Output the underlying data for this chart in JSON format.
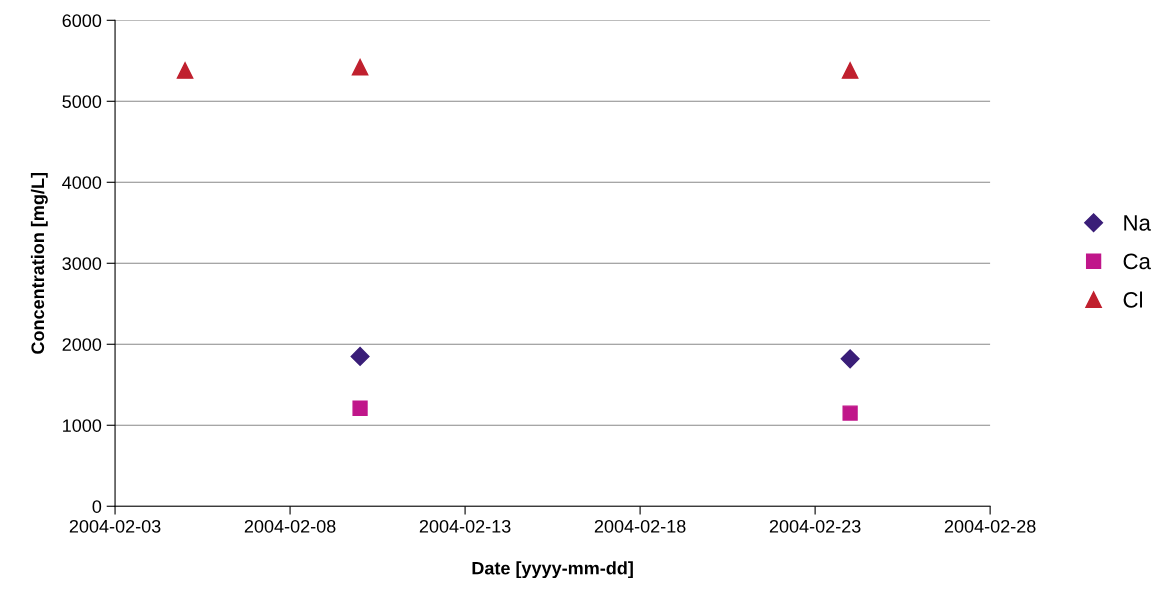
{
  "chart_data": {
    "type": "scatter",
    "xlabel": "Date [yyyy-mm-dd]",
    "ylabel": "Concentration [mg/L]",
    "series": [
      {
        "name": "Na",
        "color": "#3a1e78",
        "marker": "diamond",
        "x": [
          "2004-02-10",
          "2004-02-24"
        ],
        "values": [
          1850,
          1820
        ]
      },
      {
        "name": "Ca",
        "color": "#c0168a",
        "marker": "square",
        "x": [
          "2004-02-10",
          "2004-02-24"
        ],
        "values": [
          1210,
          1150
        ]
      },
      {
        "name": "Cl",
        "color": "#c0202e",
        "marker": "triangle",
        "x": [
          "2004-02-05",
          "2004-02-10",
          "2004-02-24"
        ],
        "values": [
          5380,
          5420,
          5380
        ]
      }
    ],
    "xlim": [
      "2004-02-03",
      "2004-02-28"
    ],
    "xticks": [
      "2004-02-03",
      "2004-02-08",
      "2004-02-13",
      "2004-02-18",
      "2004-02-23",
      "2004-02-28"
    ],
    "ylim": [
      0,
      6000
    ],
    "yticks": [
      0,
      1000,
      2000,
      3000,
      4000,
      5000,
      6000
    ],
    "grid": "y",
    "legend": "right"
  }
}
